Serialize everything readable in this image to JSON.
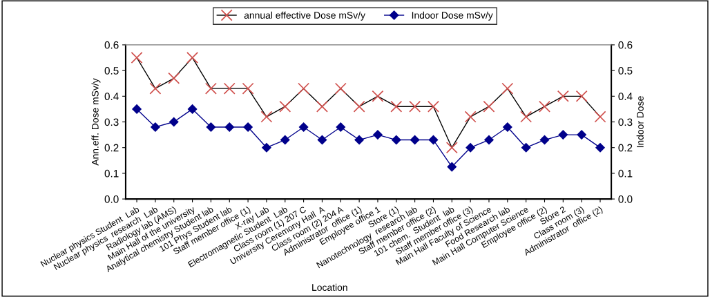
{
  "chart_data": {
    "type": "line",
    "xlabel": "Location",
    "ylabel": "Ann.eff. Dose mSv/y",
    "y2label": "Indoor Dose",
    "categories": [
      "Nuclear physics Student  Lab",
      "Nuclear physics  research  Lab",
      "Radiology lab (AMS)",
      "Main Hall of the university",
      "Analytical chemistry Student lab",
      "101 Phys Student lab",
      "Staff member office (1)",
      "X-ray Lab",
      "Electromagnetic Student  Lab",
      "Class room (1) 207 C",
      "University Ceremony Hall  A",
      "Class room (2) 204 A",
      "Administrator  office (1)",
      "Employee office 1",
      "Store (1)",
      "Nanotechnology  research lab",
      "Staff member office (2)",
      "101 chem.  Student  lab",
      "Staff member office (3)",
      "Main Hall Faculty of Science",
      "Food Research lab",
      "Main Hall Computer Science",
      "Employee office (2)",
      "Store 2",
      "Class room (3)",
      "Administrator  office (2)"
    ],
    "series": [
      {
        "name": "annual effective Dose mSv/y",
        "color": "#d0504d",
        "marker": "cross",
        "values": [
          0.55,
          0.43,
          0.47,
          0.55,
          0.43,
          0.43,
          0.43,
          0.32,
          0.36,
          0.43,
          0.36,
          0.43,
          0.36,
          0.4,
          0.36,
          0.36,
          0.36,
          0.2,
          0.32,
          0.36,
          0.43,
          0.32,
          0.36,
          0.4,
          0.4,
          0.32
        ]
      },
      {
        "name": "Indoor Dose mSv/y",
        "color": "#00008b",
        "marker": "diamond",
        "values": [
          0.35,
          0.28,
          0.3,
          0.35,
          0.28,
          0.28,
          0.28,
          0.2,
          0.23,
          0.28,
          0.23,
          0.28,
          0.23,
          0.25,
          0.23,
          0.23,
          0.23,
          0.125,
          0.2,
          0.23,
          0.28,
          0.2,
          0.23,
          0.25,
          0.25,
          0.2
        ]
      }
    ],
    "ylim": [
      0,
      0.6
    ],
    "yticks": [
      {
        "value": 0,
        "label": "0.0"
      },
      0.1,
      0.2,
      0.3,
      0.4,
      0.5,
      0.6
    ],
    "y2lim": [
      0,
      0.6
    ],
    "y2ticks": [
      {
        "value": 0,
        "label": "0.0"
      },
      0.1,
      0.2,
      0.3,
      0.4,
      0.5,
      0.6
    ],
    "legend": "top",
    "grid": false
  }
}
